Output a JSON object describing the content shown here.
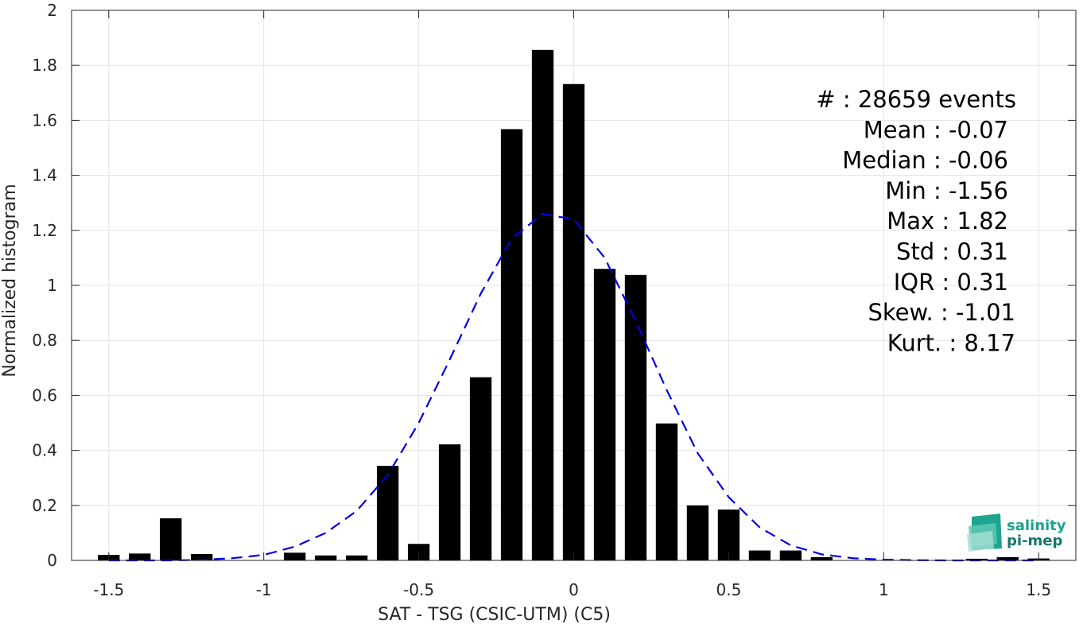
{
  "chart_data": {
    "type": "bar",
    "xlabel": "SAT - TSG (CSIC-UTM) (C5)",
    "ylabel": "Normalized histogram",
    "xlim": [
      -1.62,
      1.62
    ],
    "ylim": [
      0,
      2
    ],
    "grid": true,
    "xticks": [
      -1.5,
      -1,
      -0.5,
      0,
      0.5,
      1,
      1.5
    ],
    "xtick_labels": [
      "-1.5",
      "-1",
      "-0.5",
      "0",
      "0.5",
      "1",
      "1.5"
    ],
    "yticks": [
      0,
      0.2,
      0.4,
      0.6,
      0.8,
      1,
      1.2,
      1.4,
      1.6,
      1.8,
      2
    ],
    "ytick_labels": [
      "0",
      "0.2",
      "0.4",
      "0.6",
      "0.8",
      "1",
      "1.2",
      "1.4",
      "1.6",
      "1.8",
      "2"
    ],
    "bar_width": 0.07,
    "bar_color": "#000000",
    "bars": [
      {
        "x": -1.5,
        "y": 0.02
      },
      {
        "x": -1.4,
        "y": 0.025
      },
      {
        "x": -1.3,
        "y": 0.153
      },
      {
        "x": -1.2,
        "y": 0.023
      },
      {
        "x": -0.9,
        "y": 0.028
      },
      {
        "x": -0.8,
        "y": 0.018
      },
      {
        "x": -0.7,
        "y": 0.018
      },
      {
        "x": -0.6,
        "y": 0.344
      },
      {
        "x": -0.5,
        "y": 0.06
      },
      {
        "x": -0.4,
        "y": 0.422
      },
      {
        "x": -0.3,
        "y": 0.666
      },
      {
        "x": -0.2,
        "y": 1.568
      },
      {
        "x": -0.1,
        "y": 1.856
      },
      {
        "x": 0.0,
        "y": 1.732
      },
      {
        "x": 0.1,
        "y": 1.06
      },
      {
        "x": 0.2,
        "y": 1.038
      },
      {
        "x": 0.3,
        "y": 0.498
      },
      {
        "x": 0.4,
        "y": 0.2
      },
      {
        "x": 0.5,
        "y": 0.185
      },
      {
        "x": 0.6,
        "y": 0.036
      },
      {
        "x": 0.7,
        "y": 0.036
      },
      {
        "x": 0.8,
        "y": 0.012
      },
      {
        "x": 1.3,
        "y": 0.006
      },
      {
        "x": 1.4,
        "y": 0.012
      },
      {
        "x": 1.5,
        "y": 0.007
      }
    ],
    "fit_line": {
      "style": "dashed",
      "color": "#0000e6",
      "points": [
        [
          -1.5,
          0.0
        ],
        [
          -1.4,
          0.0
        ],
        [
          -1.3,
          0.0
        ],
        [
          -1.2,
          0.002
        ],
        [
          -1.1,
          0.008
        ],
        [
          -1.0,
          0.02
        ],
        [
          -0.9,
          0.05
        ],
        [
          -0.8,
          0.1
        ],
        [
          -0.7,
          0.18
        ],
        [
          -0.6,
          0.31
        ],
        [
          -0.5,
          0.5
        ],
        [
          -0.4,
          0.73
        ],
        [
          -0.3,
          0.97
        ],
        [
          -0.2,
          1.17
        ],
        [
          -0.1,
          1.26
        ],
        [
          0.0,
          1.24
        ],
        [
          0.1,
          1.1
        ],
        [
          0.2,
          0.87
        ],
        [
          0.3,
          0.62
        ],
        [
          0.4,
          0.39
        ],
        [
          0.5,
          0.23
        ],
        [
          0.6,
          0.12
        ],
        [
          0.7,
          0.055
        ],
        [
          0.8,
          0.022
        ],
        [
          0.9,
          0.008
        ],
        [
          1.0,
          0.003
        ],
        [
          1.1,
          0.001
        ],
        [
          1.2,
          0.0
        ],
        [
          1.3,
          0.0
        ],
        [
          1.4,
          0.0
        ],
        [
          1.5,
          0.0
        ]
      ]
    },
    "stats": [
      {
        "label": "#  ",
        "value": ": 28659 events"
      },
      {
        "label": "Mean",
        "value": ": -0.07"
      },
      {
        "label": "Median",
        "value": ": -0.06"
      },
      {
        "label": "Min",
        "value": ": -1.56"
      },
      {
        "label": "Max",
        "value": ": 1.82"
      },
      {
        "label": "Std",
        "value": ": 0.31"
      },
      {
        "label": "IQR",
        "value": ": 0.31"
      },
      {
        "label": "Skew.",
        "value": ": -1.01"
      },
      {
        "label": "Kurt.",
        "value": ": 8.17"
      }
    ]
  },
  "logo": {
    "line1": "salinity",
    "line2": "pi-mep",
    "color1": "#1aa390",
    "color2": "#14786a"
  }
}
